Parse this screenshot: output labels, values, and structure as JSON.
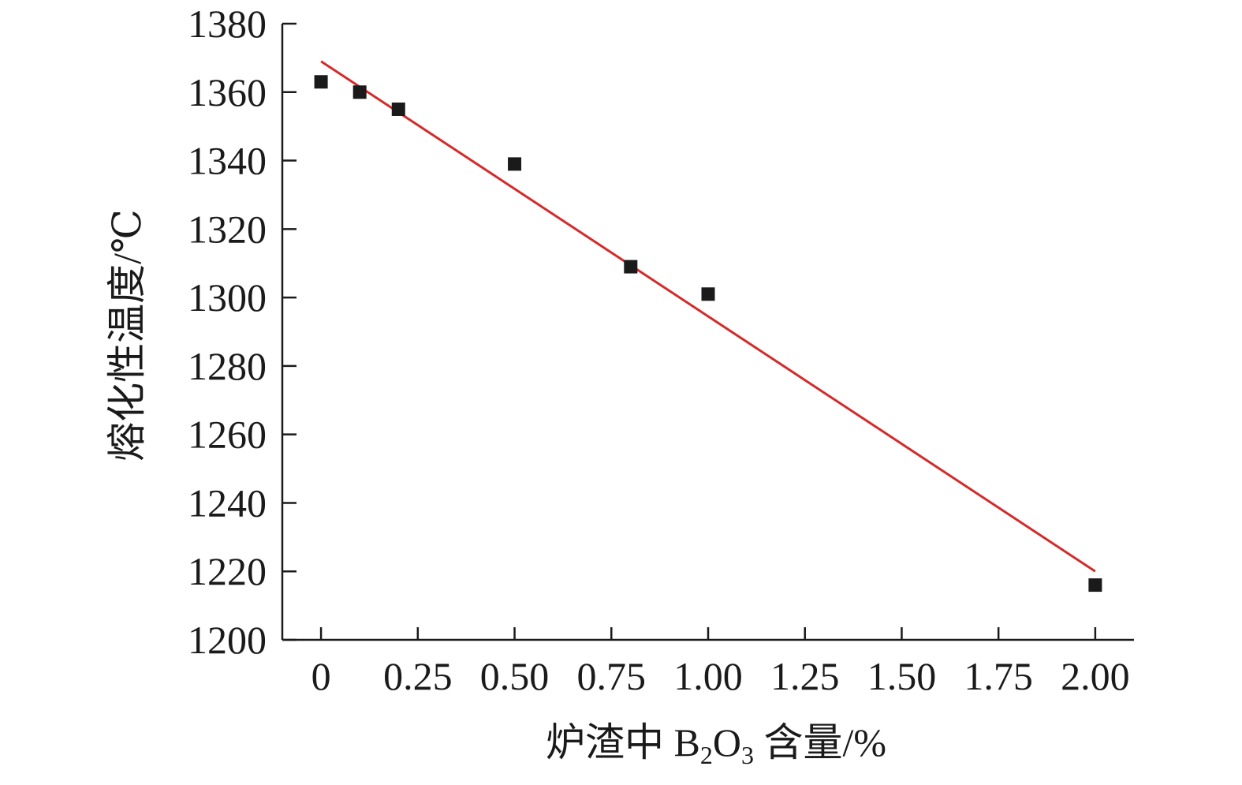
{
  "chart_data": {
    "type": "scatter",
    "title": "",
    "xlabel": "炉渣中 B₂O₃ 含量/%",
    "xlabel_parts": {
      "prefix": "炉渣中 B",
      "sub1": "2",
      "mid": "O",
      "sub2": "3",
      "suffix": " 含量/%"
    },
    "ylabel": "熔化性温度/℃",
    "xlim": [
      -0.1,
      2.1
    ],
    "ylim": [
      1200,
      1380
    ],
    "x_ticks": [
      0,
      0.25,
      0.5,
      0.75,
      1.0,
      1.25,
      1.5,
      1.75,
      2.0
    ],
    "x_tick_labels": [
      "0",
      "0.25",
      "0.50",
      "0.75",
      "1.00",
      "1.25",
      "1.50",
      "1.75",
      "2.00"
    ],
    "y_ticks": [
      1200,
      1220,
      1240,
      1260,
      1280,
      1300,
      1320,
      1340,
      1360,
      1380
    ],
    "y_tick_labels": [
      "1200",
      "1220",
      "1240",
      "1260",
      "1280",
      "1300",
      "1320",
      "1340",
      "1360",
      "1380"
    ],
    "series": [
      {
        "marker": "square",
        "color": "#1a1a1a",
        "points": [
          {
            "x": 0,
            "y": 1363
          },
          {
            "x": 0.1,
            "y": 1360
          },
          {
            "x": 0.2,
            "y": 1355
          },
          {
            "x": 0.5,
            "y": 1339
          },
          {
            "x": 0.8,
            "y": 1309
          },
          {
            "x": 1.0,
            "y": 1301
          },
          {
            "x": 2.0,
            "y": 1216
          }
        ]
      }
    ],
    "fit_line": {
      "color": "#d62a2a",
      "points": [
        {
          "x": 0,
          "y": 1369
        },
        {
          "x": 2.0,
          "y": 1220
        }
      ]
    },
    "grid": false,
    "legend": "none"
  }
}
